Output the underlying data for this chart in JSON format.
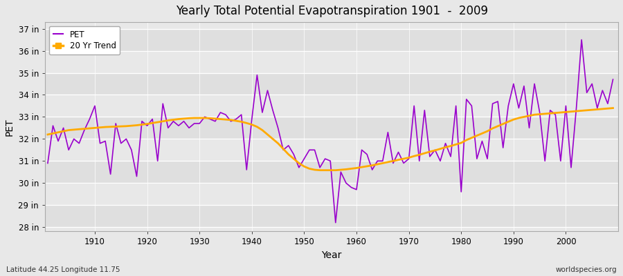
{
  "title": "Yearly Total Potential Evapotranspiration 1901  -  2009",
  "xlabel": "Year",
  "ylabel": "PET",
  "years": [
    1901,
    1902,
    1903,
    1904,
    1905,
    1906,
    1907,
    1908,
    1909,
    1910,
    1911,
    1912,
    1913,
    1914,
    1915,
    1916,
    1917,
    1918,
    1919,
    1920,
    1921,
    1922,
    1923,
    1924,
    1925,
    1926,
    1927,
    1928,
    1929,
    1930,
    1931,
    1932,
    1933,
    1934,
    1935,
    1936,
    1937,
    1938,
    1939,
    1940,
    1941,
    1942,
    1943,
    1944,
    1945,
    1946,
    1947,
    1948,
    1949,
    1950,
    1951,
    1952,
    1953,
    1954,
    1955,
    1956,
    1957,
    1958,
    1959,
    1960,
    1961,
    1962,
    1963,
    1964,
    1965,
    1966,
    1967,
    1968,
    1969,
    1970,
    1971,
    1972,
    1973,
    1974,
    1975,
    1976,
    1977,
    1978,
    1979,
    1980,
    1981,
    1982,
    1983,
    1984,
    1985,
    1986,
    1987,
    1988,
    1989,
    1990,
    1991,
    1992,
    1993,
    1994,
    1995,
    1996,
    1997,
    1998,
    1999,
    2000,
    2001,
    2002,
    2003,
    2004,
    2005,
    2006,
    2007,
    2008,
    2009
  ],
  "pet": [
    30.9,
    32.6,
    31.9,
    32.5,
    31.5,
    32.0,
    31.8,
    32.4,
    32.9,
    33.5,
    31.8,
    31.9,
    30.4,
    32.7,
    31.8,
    32.0,
    31.5,
    30.3,
    32.8,
    32.6,
    32.9,
    31.0,
    33.6,
    32.5,
    32.8,
    32.6,
    32.8,
    32.5,
    32.7,
    32.7,
    33.0,
    32.9,
    32.8,
    33.2,
    33.1,
    32.8,
    32.9,
    33.1,
    30.6,
    32.9,
    34.9,
    33.2,
    34.2,
    33.3,
    32.5,
    31.5,
    31.7,
    31.3,
    30.7,
    31.1,
    31.5,
    31.5,
    30.7,
    31.1,
    31.0,
    28.2,
    30.5,
    30.0,
    29.8,
    29.7,
    31.5,
    31.3,
    30.6,
    31.0,
    31.0,
    32.3,
    30.9,
    31.4,
    30.9,
    31.1,
    33.5,
    31.0,
    33.3,
    31.2,
    31.5,
    31.0,
    31.8,
    31.2,
    33.5,
    29.6,
    33.8,
    33.5,
    31.1,
    31.9,
    31.1,
    33.6,
    33.7,
    31.6,
    33.5,
    34.5,
    33.4,
    34.4,
    32.5,
    34.5,
    33.2,
    31.0,
    33.3,
    33.1,
    31.0,
    33.5,
    30.7,
    33.4,
    36.5,
    34.1,
    34.5,
    33.4,
    34.2,
    33.6,
    34.7
  ],
  "trend_years": [
    1901,
    1902,
    1903,
    1904,
    1905,
    1906,
    1907,
    1908,
    1909,
    1910,
    1911,
    1912,
    1913,
    1914,
    1915,
    1916,
    1917,
    1918,
    1919,
    1920,
    1921,
    1922,
    1923,
    1924,
    1925,
    1926,
    1927,
    1928,
    1929,
    1930,
    1931,
    1932,
    1933,
    1934,
    1935,
    1936,
    1937,
    1938,
    1939,
    1940,
    1941,
    1942,
    1943,
    1944,
    1945,
    1946,
    1947,
    1948,
    1949,
    1950,
    1951,
    1952,
    1953,
    1954,
    1955,
    1956,
    1957,
    1958,
    1959,
    1960,
    1961,
    1962,
    1963,
    1964,
    1965,
    1966,
    1967,
    1968,
    1969,
    1970,
    1971,
    1972,
    1973,
    1974,
    1975,
    1976,
    1977,
    1978,
    1979,
    1980,
    1981,
    1982,
    1983,
    1984,
    1985,
    1986,
    1987,
    1988,
    1989,
    1990,
    1991,
    1992,
    1993,
    1994,
    1995,
    1996,
    1997,
    1998,
    1999,
    2000,
    2001,
    2002,
    2003,
    2004,
    2005,
    2006,
    2007,
    2008,
    2009
  ],
  "trend": [
    32.2,
    32.25,
    32.3,
    32.35,
    32.4,
    32.42,
    32.44,
    32.46,
    32.48,
    32.5,
    32.52,
    32.54,
    32.55,
    32.56,
    32.57,
    32.58,
    32.6,
    32.62,
    32.65,
    32.68,
    32.72,
    32.76,
    32.8,
    32.84,
    32.87,
    32.9,
    32.92,
    32.94,
    32.95,
    32.95,
    32.95,
    32.94,
    32.92,
    32.9,
    32.88,
    32.86,
    32.82,
    32.78,
    32.72,
    32.65,
    32.55,
    32.4,
    32.2,
    32.0,
    31.8,
    31.55,
    31.3,
    31.1,
    30.9,
    30.75,
    30.65,
    30.6,
    30.58,
    30.58,
    30.58,
    30.58,
    30.6,
    30.62,
    30.65,
    30.68,
    30.72,
    30.76,
    30.8,
    30.85,
    30.9,
    30.95,
    31.0,
    31.05,
    31.1,
    31.15,
    31.22,
    31.28,
    31.35,
    31.42,
    31.48,
    31.55,
    31.62,
    31.68,
    31.75,
    31.82,
    31.95,
    32.05,
    32.15,
    32.25,
    32.35,
    32.48,
    32.58,
    32.68,
    32.78,
    32.88,
    32.95,
    33.0,
    33.05,
    33.1,
    33.12,
    33.14,
    33.16,
    33.18,
    33.2,
    33.22,
    33.24,
    33.26,
    33.28,
    33.3,
    33.32,
    33.34,
    33.36,
    33.38,
    33.4
  ],
  "pet_color": "#9900cc",
  "trend_color": "#ffaa00",
  "bg_color": "#e8e8e8",
  "plot_bg_color": "#e8e8e8",
  "grid_color": "#ffffff",
  "ytick_labels": [
    "28 in",
    "29 in",
    "30 in",
    "31 in",
    "32 in",
    "33 in",
    "34 in",
    "35 in",
    "36 in",
    "37 in"
  ],
  "ytick_values": [
    28,
    29,
    30,
    31,
    32,
    33,
    34,
    35,
    36,
    37
  ],
  "ylim": [
    27.8,
    37.3
  ],
  "xlim": [
    1900.5,
    2010
  ],
  "xtick_values": [
    1910,
    1920,
    1930,
    1940,
    1950,
    1960,
    1970,
    1980,
    1990,
    2000
  ],
  "footnote_left": "Latitude 44.25 Longitude 11.75",
  "footnote_right": "worldspecies.org",
  "legend_pet": "PET",
  "legend_trend": "20 Yr Trend"
}
